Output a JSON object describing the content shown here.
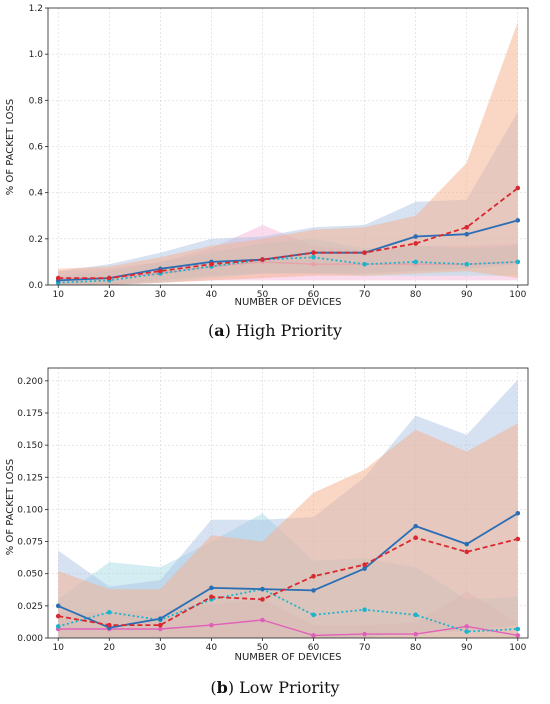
{
  "chart_data": [
    {
      "type": "line",
      "caption_label": "a",
      "caption_text": "High Priority",
      "xlabel": "NUMBER OF DEVICES",
      "ylabel": "% OF PACKET LOSS",
      "x": [
        10,
        20,
        30,
        40,
        50,
        60,
        70,
        80,
        90,
        100
      ],
      "xlim": [
        8,
        102
      ],
      "ylim": [
        0,
        1.2
      ],
      "xticks": [
        10,
        20,
        30,
        40,
        50,
        60,
        70,
        80,
        90,
        100
      ],
      "yticks": [
        0.0,
        0.2,
        0.4,
        0.6,
        0.8,
        1.0,
        1.2
      ],
      "ytick_labels": [
        "0.0",
        "0.2",
        "0.4",
        "0.6",
        "0.8",
        "1.0",
        "1.2"
      ],
      "grid": true,
      "series": [
        {
          "color": "#e5a2a8",
          "band": "#f5b8dc",
          "dash": "",
          "width": 1.4,
          "values": [
            0.03,
            0.03,
            0.05,
            0.08,
            0.1,
            0.09,
            0.09,
            0.09,
            0.09,
            0.1
          ],
          "lower": [
            0.0,
            0.0,
            0.01,
            0.02,
            0.02,
            0.02,
            0.02,
            0.02,
            0.02,
            0.02
          ],
          "upper": [
            0.06,
            0.07,
            0.1,
            0.16,
            0.26,
            0.17,
            0.15,
            0.17,
            0.17,
            0.18
          ]
        },
        {
          "color": "#1ab4cc",
          "band": "#a8dce6",
          "dash": "2,2.5",
          "width": 1.8,
          "values": [
            0.01,
            0.02,
            0.05,
            0.08,
            0.11,
            0.12,
            0.09,
            0.1,
            0.09,
            0.1
          ],
          "lower": [
            0.0,
            0.0,
            0.01,
            0.03,
            0.05,
            0.05,
            0.04,
            0.04,
            0.04,
            0.04
          ],
          "upper": [
            0.04,
            0.06,
            0.1,
            0.14,
            0.18,
            0.2,
            0.16,
            0.17,
            0.16,
            0.17
          ]
        },
        {
          "color": "#2a6eb5",
          "band": "#aec4e6",
          "dash": "",
          "width": 1.8,
          "values": [
            0.02,
            0.03,
            0.07,
            0.1,
            0.11,
            0.14,
            0.14,
            0.21,
            0.22,
            0.28
          ],
          "lower": [
            0.0,
            0.0,
            0.02,
            0.04,
            0.05,
            0.05,
            0.05,
            0.06,
            0.07,
            0.09
          ],
          "upper": [
            0.06,
            0.09,
            0.14,
            0.2,
            0.21,
            0.25,
            0.26,
            0.36,
            0.37,
            0.75
          ]
        },
        {
          "color": "#d9282f",
          "band": "#f5b08c",
          "dash": "5,3",
          "width": 1.8,
          "values": [
            0.03,
            0.03,
            0.06,
            0.09,
            0.11,
            0.14,
            0.14,
            0.18,
            0.25,
            0.42
          ],
          "lower": [
            0.0,
            0.0,
            0.01,
            0.02,
            0.03,
            0.04,
            0.04,
            0.05,
            0.06,
            0.03
          ],
          "upper": [
            0.07,
            0.08,
            0.12,
            0.17,
            0.2,
            0.24,
            0.25,
            0.3,
            0.53,
            1.14
          ]
        }
      ]
    },
    {
      "type": "line",
      "caption_label": "b",
      "caption_text": "Low Priority",
      "xlabel": "NUMBER OF DEVICES",
      "ylabel": "% OF PACKET LOSS",
      "x": [
        10,
        20,
        30,
        40,
        50,
        60,
        70,
        80,
        90,
        100
      ],
      "xlim": [
        8,
        102
      ],
      "ylim": [
        0,
        0.21
      ],
      "xticks": [
        10,
        20,
        30,
        40,
        50,
        60,
        70,
        80,
        90,
        100
      ],
      "yticks": [
        0.0,
        0.025,
        0.05,
        0.075,
        0.1,
        0.125,
        0.15,
        0.175,
        0.2
      ],
      "ytick_labels": [
        "0.000",
        "0.025",
        "0.050",
        "0.075",
        "0.100",
        "0.125",
        "0.150",
        "0.175",
        "0.200"
      ],
      "grid": true,
      "series": [
        {
          "color": "#e060b8",
          "band": "#f5b8dc",
          "dash": "",
          "width": 1.4,
          "values": [
            0.007,
            0.007,
            0.007,
            0.01,
            0.014,
            0.002,
            0.003,
            0.003,
            0.009,
            0.002
          ],
          "lower": [
            0.0,
            0.0,
            0.0,
            0.0,
            0.0,
            0.0,
            0.0,
            0.0,
            0.0,
            0.0
          ],
          "upper": [
            0.02,
            0.02,
            0.022,
            0.026,
            0.03,
            0.01,
            0.01,
            0.012,
            0.036,
            0.012
          ]
        },
        {
          "color": "#1ab4cc",
          "band": "#a8dce6",
          "dash": "2,2.5",
          "width": 1.8,
          "values": [
            0.009,
            0.02,
            0.014,
            0.03,
            0.038,
            0.018,
            0.022,
            0.018,
            0.005,
            0.007
          ],
          "lower": [
            0.0,
            0.0,
            0.0,
            0.0,
            0.0,
            0.0,
            0.0,
            0.0,
            0.0,
            0.0
          ],
          "upper": [
            0.03,
            0.059,
            0.055,
            0.075,
            0.097,
            0.06,
            0.062,
            0.055,
            0.03,
            0.032
          ]
        },
        {
          "color": "#2a6eb5",
          "band": "#aec4e6",
          "dash": "",
          "width": 1.8,
          "values": [
            0.025,
            0.008,
            0.015,
            0.039,
            0.038,
            0.037,
            0.054,
            0.087,
            0.073,
            0.097
          ],
          "lower": [
            0.0,
            0.0,
            0.0,
            0.0,
            0.0,
            0.0,
            0.0,
            0.005,
            0.005,
            0.01
          ],
          "upper": [
            0.068,
            0.04,
            0.045,
            0.092,
            0.092,
            0.094,
            0.125,
            0.173,
            0.158,
            0.201
          ]
        },
        {
          "color": "#d9282f",
          "band": "#f5b08c",
          "dash": "5,3",
          "width": 1.8,
          "values": [
            0.017,
            0.01,
            0.01,
            0.032,
            0.03,
            0.048,
            0.057,
            0.078,
            0.067,
            0.077
          ],
          "lower": [
            0.0,
            0.0,
            0.0,
            0.0,
            0.0,
            0.0,
            0.0,
            0.0,
            0.0,
            0.0
          ],
          "upper": [
            0.052,
            0.038,
            0.038,
            0.08,
            0.075,
            0.113,
            0.131,
            0.162,
            0.145,
            0.167
          ]
        }
      ]
    }
  ]
}
